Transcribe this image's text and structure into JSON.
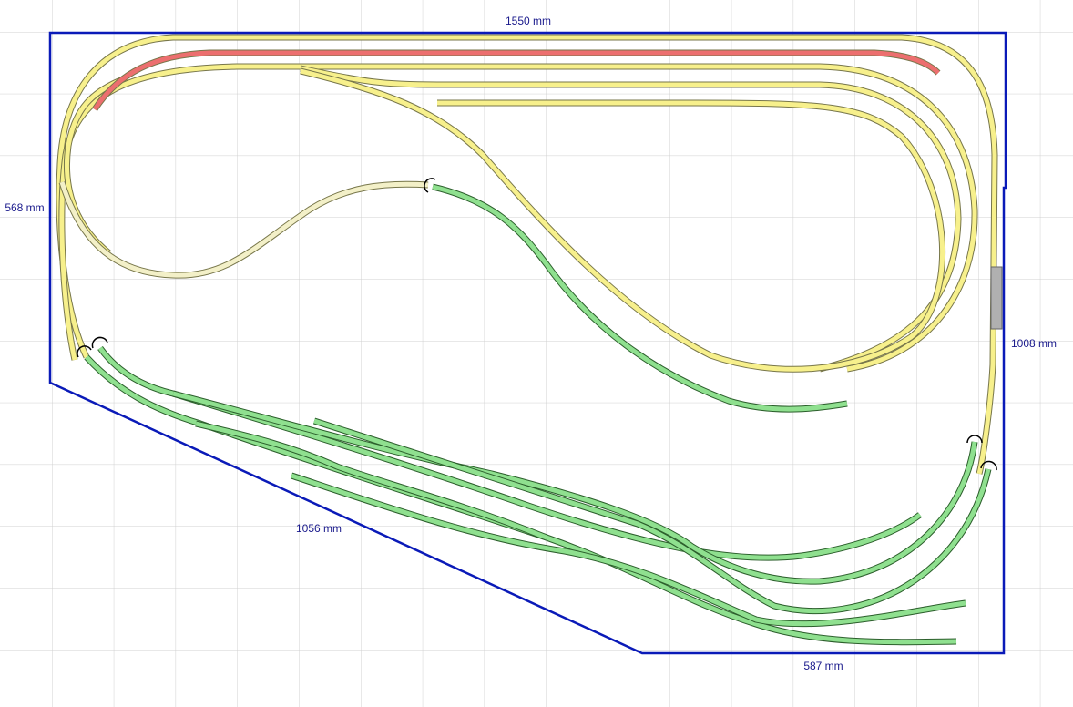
{
  "dimensions": {
    "top": "1550 mm",
    "left": "568 mm",
    "right": "1008 mm",
    "diagonal": "1056 mm",
    "bottom": "587 mm"
  }
}
